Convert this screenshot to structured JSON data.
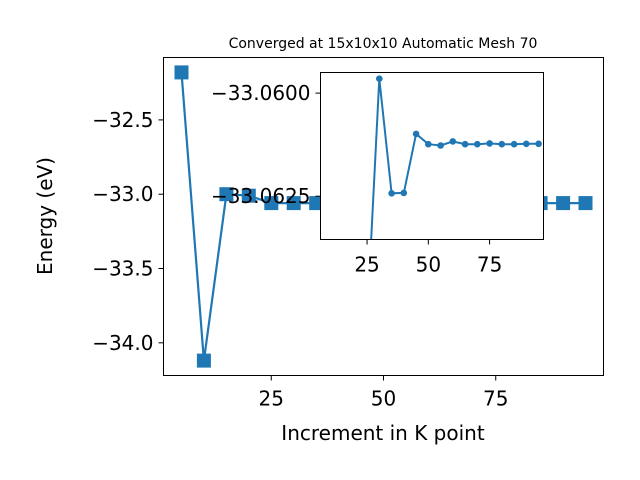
{
  "colors": {
    "series": "#1f77b4",
    "axes": "#000000",
    "background": "#ffffff"
  },
  "chart_data": [
    {
      "type": "line",
      "title": "Converged at 15x10x10 Automatic Mesh 70",
      "xlabel": "Increment in K point",
      "ylabel": "Energy (eV)",
      "xlim": [
        1,
        99
      ],
      "ylim": [
        -34.22,
        -32.08
      ],
      "xticks": [
        25,
        50,
        75
      ],
      "xtick_labels": [
        "25",
        "50",
        "75"
      ],
      "yticks": [
        -32.5,
        -33.0,
        -33.5,
        -34.0
      ],
      "ytick_labels": [
        "−32.5",
        "−33.0",
        "−33.5",
        "−34.0"
      ],
      "marker": "square",
      "grid": false,
      "series": [
        {
          "x": [
            5,
            10,
            15,
            20,
            25,
            30,
            35,
            40,
            45,
            50,
            55,
            60,
            65,
            70,
            75,
            80,
            85,
            90,
            95
          ],
          "y": [
            -32.18,
            -34.12,
            -33.0,
            -33.01,
            -33.06,
            -33.06,
            -33.06,
            -33.06,
            -33.06,
            -33.06,
            -33.06,
            -33.06,
            -33.06,
            -33.06,
            -33.06,
            -33.06,
            -33.06,
            -33.06,
            -33.06
          ]
        }
      ]
    },
    {
      "type": "line",
      "inset": true,
      "xlim": [
        6,
        97
      ],
      "ylim": [
        -33.0595,
        -33.06355
      ],
      "xticks": [
        25,
        50,
        75
      ],
      "xtick_labels": [
        "25",
        "50",
        "75"
      ],
      "yticks": [
        -33.0625,
        -33.06
      ],
      "ytick_labels": [
        "−33.0625",
        "−33.0600"
      ],
      "marker": "circle",
      "grid": false,
      "series": [
        {
          "x": [
            25,
            30,
            35,
            40,
            45,
            50,
            55,
            60,
            65,
            70,
            75,
            80,
            85,
            90,
            95
          ],
          "y": [
            -33.0655,
            -33.05965,
            -33.06243,
            -33.06242,
            -33.06099,
            -33.06124,
            -33.06127,
            -33.06117,
            -33.06124,
            -33.06124,
            -33.06122,
            -33.06124,
            -33.06124,
            -33.06123,
            -33.06123
          ]
        }
      ]
    }
  ]
}
